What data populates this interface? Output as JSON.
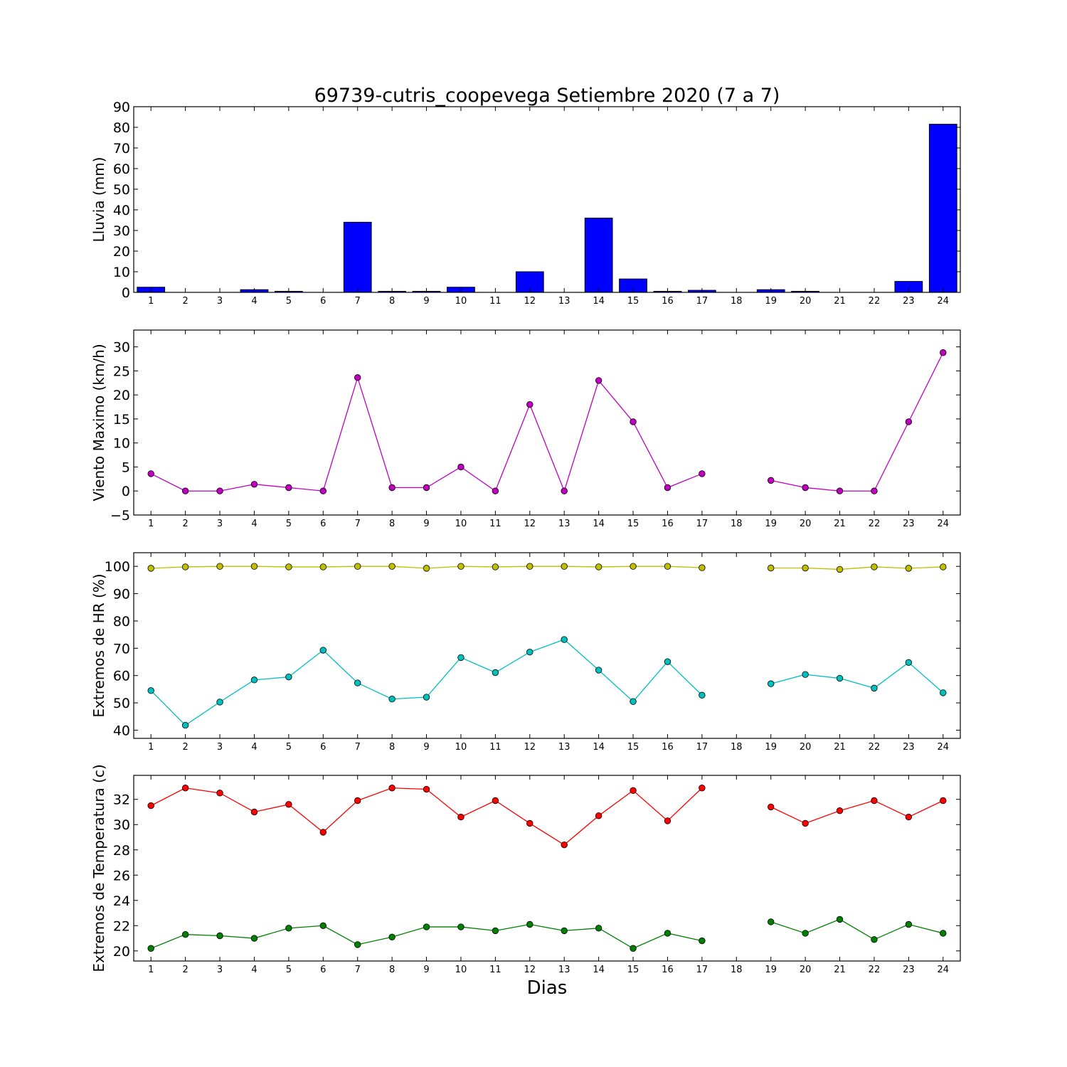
{
  "chart_data": {
    "type": "multi-panel",
    "title": "69739-cutris_coopevega Setiembre 2020  (7 a 7)",
    "xlabel": "Dias",
    "x": [
      1,
      2,
      3,
      4,
      5,
      6,
      7,
      8,
      9,
      10,
      11,
      12,
      13,
      14,
      15,
      16,
      17,
      18,
      19,
      20,
      21,
      22,
      23,
      24
    ],
    "xlim": [
      0.5,
      24.5
    ],
    "panels": [
      {
        "type": "bar",
        "ylabel": "Lluvia (mm)",
        "ylim": [
          0,
          90
        ],
        "yticks": [
          0,
          10,
          20,
          30,
          40,
          50,
          60,
          70,
          80,
          90
        ],
        "color": "#0000ff",
        "series": [
          {
            "values": [
              2.5,
              0,
              0,
              1.3,
              0.5,
              0,
              34,
              0.5,
              0.5,
              2.5,
              0,
              10,
              0,
              36,
              6.5,
              0.5,
              1,
              0,
              1.3,
              0.5,
              0,
              0,
              5.3,
              81.5
            ]
          }
        ]
      },
      {
        "type": "line",
        "ylabel": "Viento Maximo (km/h)",
        "ylim": [
          -5,
          33.5
        ],
        "yticks": [
          -5,
          0,
          5,
          10,
          15,
          20,
          25,
          30
        ],
        "series": [
          {
            "color": "#bf00bf",
            "values": [
              3.6,
              0,
              0,
              1.4,
              0.7,
              0,
              23.6,
              0.7,
              0.7,
              5,
              0,
              18,
              0,
              23,
              14.4,
              0.7,
              3.6,
              null,
              2.2,
              0.7,
              0,
              0,
              14.4,
              28.8
            ]
          }
        ]
      },
      {
        "type": "line",
        "ylabel": "Extremos de HR (%)",
        "ylim": [
          37,
          105
        ],
        "yticks": [
          40,
          50,
          60,
          70,
          80,
          90,
          100
        ],
        "series": [
          {
            "color": "#bfbf00",
            "values": [
              99.3,
              99.8,
              100,
              100,
              99.8,
              99.8,
              100,
              100,
              99.3,
              100,
              99.8,
              100,
              100,
              99.8,
              100,
              100,
              99.5,
              null,
              99.4,
              99.4,
              98.9,
              99.8,
              99.3,
              99.8
            ]
          },
          {
            "color": "#00bfbf",
            "values": [
              54.5,
              41.8,
              50.3,
              58.4,
              59.5,
              69.3,
              57.3,
              51.4,
              52.1,
              66.6,
              61.1,
              68.6,
              73.2,
              62,
              50.5,
              65.1,
              52.8,
              null,
              57,
              60.4,
              59,
              55.4,
              64.8,
              53.7
            ]
          }
        ]
      },
      {
        "type": "line",
        "ylabel": "Extremos de Temperatura (c)",
        "ylim": [
          19.2,
          33.9
        ],
        "yticks": [
          20,
          22,
          24,
          26,
          28,
          30,
          32
        ],
        "series": [
          {
            "color": "#ff0000",
            "values": [
              31.5,
              32.9,
              32.5,
              31,
              31.6,
              29.4,
              31.9,
              32.9,
              32.8,
              30.6,
              31.9,
              30.1,
              28.4,
              30.7,
              32.7,
              30.3,
              32.9,
              null,
              31.4,
              30.1,
              31.1,
              31.9,
              30.6,
              31.9
            ]
          },
          {
            "color": "#008000",
            "values": [
              20.2,
              21.3,
              21.2,
              21,
              21.8,
              22,
              20.5,
              21.1,
              21.9,
              21.9,
              21.6,
              22.1,
              21.6,
              21.8,
              20.2,
              21.4,
              20.8,
              null,
              22.3,
              21.4,
              22.5,
              20.9,
              22.1,
              21.4
            ]
          }
        ]
      }
    ]
  }
}
